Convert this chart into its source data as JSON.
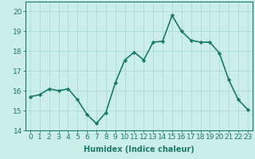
{
  "x": [
    0,
    1,
    2,
    3,
    4,
    5,
    6,
    7,
    8,
    9,
    10,
    11,
    12,
    13,
    14,
    15,
    16,
    17,
    18,
    19,
    20,
    21,
    22,
    23
  ],
  "y": [
    15.7,
    15.8,
    16.1,
    16.0,
    16.1,
    15.55,
    14.8,
    14.35,
    14.9,
    16.4,
    17.55,
    17.95,
    17.55,
    18.45,
    18.5,
    19.8,
    19.0,
    18.55,
    18.45,
    18.45,
    17.9,
    16.55,
    15.55,
    15.05
  ],
  "line_color": "#1a7a6a",
  "marker": "D",
  "marker_size": 2.2,
  "bg_color": "#cceee8",
  "grid_color": "#aaddda",
  "xlabel": "Humidex (Indice chaleur)",
  "xlim": [
    -0.5,
    23.5
  ],
  "ylim": [
    14,
    20.5
  ],
  "yticks": [
    14,
    15,
    16,
    17,
    18,
    19,
    20
  ],
  "xticks": [
    0,
    1,
    2,
    3,
    4,
    5,
    6,
    7,
    8,
    9,
    10,
    11,
    12,
    13,
    14,
    15,
    16,
    17,
    18,
    19,
    20,
    21,
    22,
    23
  ],
  "xlabel_fontsize": 7,
  "tick_fontsize": 6.5,
  "line_width": 1.2
}
